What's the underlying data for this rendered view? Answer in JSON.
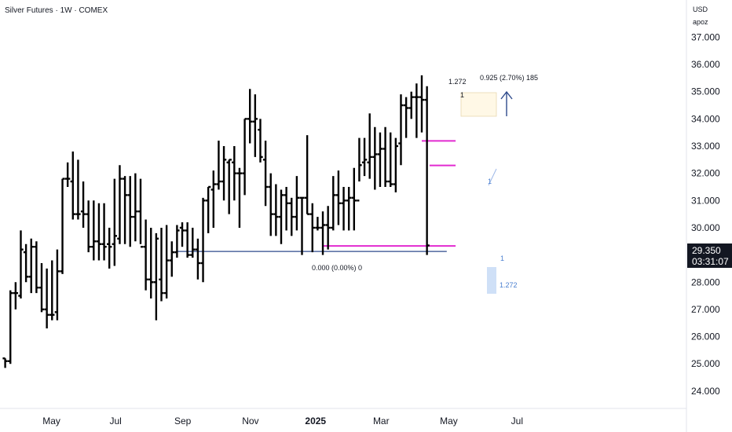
{
  "header": {
    "title": "Silver Futures · 1W · COMEX"
  },
  "price_axis": {
    "currency": "USD",
    "unit": "apoz",
    "last_price": "29.350",
    "countdown": "03:31:07"
  },
  "annotations": {
    "fib_top_left": "1.272",
    "fib_top_right": "0.925 (2.70%) 185",
    "fib_bottom": "0.000 (0.00%) 0",
    "proj_one": "1",
    "proj_one_small": "1",
    "proj_ext": "1.272",
    "small_one_top": "1"
  },
  "chart_data": {
    "type": "ohlc",
    "title": "Silver Futures · 1W · COMEX",
    "timeframe": "1W",
    "ylim": [
      23.4,
      37.6
    ],
    "y_ticks": [
      "24.000",
      "25.000",
      "26.000",
      "27.000",
      "28.000",
      "29.000",
      "30.000",
      "31.000",
      "32.000",
      "33.000",
      "34.000",
      "35.000",
      "36.000",
      "37.000"
    ],
    "x_ticks": [
      {
        "label": "May",
        "bar": 8.9
      },
      {
        "label": "Jul",
        "bar": 21.2
      },
      {
        "label": "Sep",
        "bar": 34.1
      },
      {
        "label": "Nov",
        "bar": 47.1
      },
      {
        "label": "2025",
        "bar": 59.6
      },
      {
        "label": "Mar",
        "bar": 72.2
      },
      {
        "label": "May",
        "bar": 85.2
      },
      {
        "label": "Jul",
        "bar": 98.3
      }
    ],
    "bars": [
      [
        25.2,
        25.2,
        24.85,
        25.1
      ],
      [
        25.1,
        27.7,
        25.0,
        27.6
      ],
      [
        27.6,
        28.0,
        27.0,
        27.6
      ],
      [
        27.5,
        29.9,
        27.4,
        29.2
      ],
      [
        29.1,
        29.4,
        28.0,
        28.2
      ],
      [
        28.2,
        29.6,
        27.6,
        29.3
      ],
      [
        29.3,
        29.5,
        27.6,
        27.8
      ],
      [
        27.8,
        28.7,
        26.9,
        27.0
      ],
      [
        27.0,
        28.5,
        26.3,
        26.8
      ],
      [
        26.8,
        28.8,
        26.6,
        26.8
      ],
      [
        26.9,
        29.2,
        26.6,
        28.4
      ],
      [
        28.4,
        31.8,
        28.3,
        31.8
      ],
      [
        31.8,
        32.4,
        31.5,
        31.8
      ],
      [
        31.7,
        32.8,
        30.3,
        30.5
      ],
      [
        30.5,
        32.5,
        30.3,
        30.5
      ],
      [
        30.6,
        31.7,
        30.0,
        30.5
      ],
      [
        30.5,
        31.0,
        29.1,
        29.3
      ],
      [
        29.3,
        31.0,
        28.8,
        29.5
      ],
      [
        29.5,
        30.9,
        28.8,
        29.4
      ],
      [
        29.4,
        30.9,
        28.8,
        29.3
      ],
      [
        29.4,
        30.0,
        28.5,
        29.3
      ],
      [
        29.4,
        31.8,
        28.6,
        29.7
      ],
      [
        29.6,
        32.3,
        29.4,
        31.8
      ],
      [
        31.8,
        31.9,
        29.4,
        31.2
      ],
      [
        31.2,
        31.9,
        29.3,
        30.4
      ],
      [
        30.4,
        32.0,
        29.5,
        30.6
      ],
      [
        30.6,
        31.8,
        29.4,
        29.3
      ],
      [
        29.3,
        30.3,
        27.7,
        28.1
      ],
      [
        28.1,
        30.0,
        27.4,
        28.0
      ],
      [
        28.0,
        29.8,
        26.6,
        29.6
      ],
      [
        28.1,
        30.0,
        27.3,
        27.6
      ],
      [
        27.6,
        30.1,
        27.4,
        28.8
      ],
      [
        28.8,
        29.5,
        28.2,
        29.1
      ],
      [
        29.1,
        30.1,
        28.9,
        29.9
      ],
      [
        30.0,
        30.2,
        29.3,
        29.9
      ],
      [
        29.9,
        30.2,
        28.9,
        29.0
      ],
      [
        29.0,
        30.0,
        28.9,
        29.2
      ],
      [
        29.2,
        29.6,
        28.1,
        28.7
      ],
      [
        28.7,
        31.1,
        28.0,
        31.0
      ],
      [
        31.0,
        31.5,
        29.8,
        31.5
      ],
      [
        31.4,
        32.1,
        30.0,
        31.6
      ],
      [
        31.6,
        33.2,
        31.4,
        31.7
      ],
      [
        31.7,
        33.0,
        31.0,
        32.5
      ],
      [
        32.4,
        32.5,
        30.5,
        32.5
      ],
      [
        32.4,
        33.0,
        31.0,
        32.0
      ],
      [
        32.0,
        32.2,
        30.0,
        32.0
      ],
      [
        32.0,
        34.0,
        31.2,
        34.0
      ],
      [
        34.0,
        35.1,
        33.1,
        33.9
      ],
      [
        33.9,
        34.9,
        32.6,
        34.0
      ],
      [
        33.6,
        34.0,
        32.4,
        32.6
      ],
      [
        32.5,
        33.2,
        30.8,
        31.5
      ],
      [
        31.5,
        32.0,
        29.7,
        30.5
      ],
      [
        30.5,
        31.6,
        29.7,
        30.4
      ],
      [
        30.4,
        31.4,
        29.4,
        31.2
      ],
      [
        31.2,
        31.5,
        29.9,
        30.9
      ],
      [
        30.9,
        31.1,
        29.7,
        30.4
      ],
      [
        30.4,
        31.9,
        29.9,
        31.1
      ],
      [
        31.1,
        31.1,
        29.0,
        31.1
      ],
      [
        31.1,
        33.4,
        30.5,
        30.5
      ],
      [
        30.5,
        30.9,
        29.1,
        30.0
      ],
      [
        30.0,
        30.4,
        29.9,
        30.0
      ],
      [
        30.0,
        30.6,
        29.0,
        30.1
      ],
      [
        30.1,
        30.8,
        29.2,
        30.0
      ],
      [
        30.0,
        31.9,
        29.9,
        31.2
      ],
      [
        31.2,
        32.1,
        30.1,
        30.9
      ],
      [
        30.9,
        31.5,
        29.9,
        31.0
      ],
      [
        31.0,
        31.5,
        29.9,
        31.1
      ],
      [
        31.1,
        32.2,
        29.9,
        31.0
      ],
      [
        31.0,
        33.3,
        31.7,
        32.3
      ],
      [
        32.4,
        33.3,
        31.9,
        32.5
      ],
      [
        32.4,
        34.2,
        31.8,
        32.6
      ],
      [
        32.6,
        33.7,
        31.4,
        32.7
      ],
      [
        32.7,
        33.5,
        31.5,
        32.9
      ],
      [
        32.9,
        33.7,
        31.5,
        31.7
      ],
      [
        31.7,
        33.5,
        31.5,
        31.6
      ],
      [
        31.6,
        33.3,
        31.3,
        33.0
      ],
      [
        33.1,
        34.9,
        32.3,
        34.5
      ],
      [
        34.5,
        34.8,
        33.3,
        34.4
      ],
      [
        34.4,
        35.0,
        34.0,
        34.8
      ],
      [
        34.8,
        35.3,
        33.3,
        34.8
      ],
      [
        34.8,
        35.6,
        33.5,
        34.7
      ],
      [
        34.7,
        35.2,
        29.0,
        29.35
      ]
    ],
    "levels": [
      {
        "name": "fib-0.000",
        "value": 29.13,
        "color": "#2e4a8c",
        "from": 33.0,
        "to": 84.8
      },
      {
        "name": "pink-1",
        "value": 29.33,
        "color": "#e22ad0",
        "from": 61.0,
        "to": 86.5
      },
      {
        "name": "pink-2",
        "value": 32.29,
        "color": "#e22ad0",
        "from": 81.5,
        "to": 86.5
      },
      {
        "name": "pink-3",
        "value": 33.19,
        "color": "#e22ad0",
        "from": 80.0,
        "to": 86.5
      }
    ],
    "last_price": 29.35,
    "colors": {
      "bars": "#000000",
      "last_price_label": "#131722",
      "projection": "#2962ff",
      "fib_line": "#2e4a8c",
      "levels": "#e22ad0",
      "projection_box": "#cfe0f7"
    }
  }
}
